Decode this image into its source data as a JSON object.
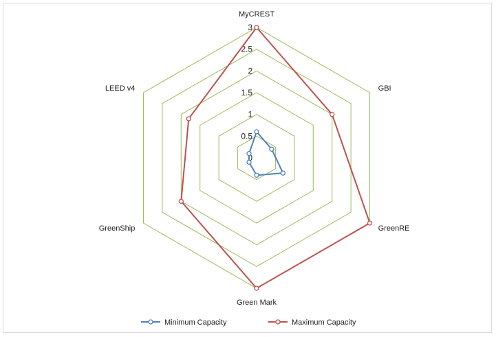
{
  "chart_data": {
    "type": "radar",
    "title": "",
    "categories": [
      "MyCREST",
      "GBI",
      "GreenRE",
      "Green Mark",
      "GreenShip",
      "LEED v4"
    ],
    "rlim": [
      0,
      3
    ],
    "ticks": [
      "0",
      "0.5",
      "1",
      "1.5",
      "2",
      "2.5",
      "3"
    ],
    "tick_values": [
      0,
      0.5,
      1,
      1.5,
      2,
      2.5,
      3
    ],
    "grid": true,
    "legend": "bottom",
    "series": [
      {
        "name": "Minimum Capacity",
        "values": [
          0.6,
          0.4,
          0.7,
          0.4,
          0.2,
          0.2
        ],
        "color": "#4f81bd"
      },
      {
        "name": "Maximum Capacity",
        "values": [
          3.0,
          2.0,
          3.0,
          3.0,
          2.0,
          1.8
        ],
        "color": "#c0504d"
      }
    ],
    "grid_color": "#9bbb59"
  }
}
